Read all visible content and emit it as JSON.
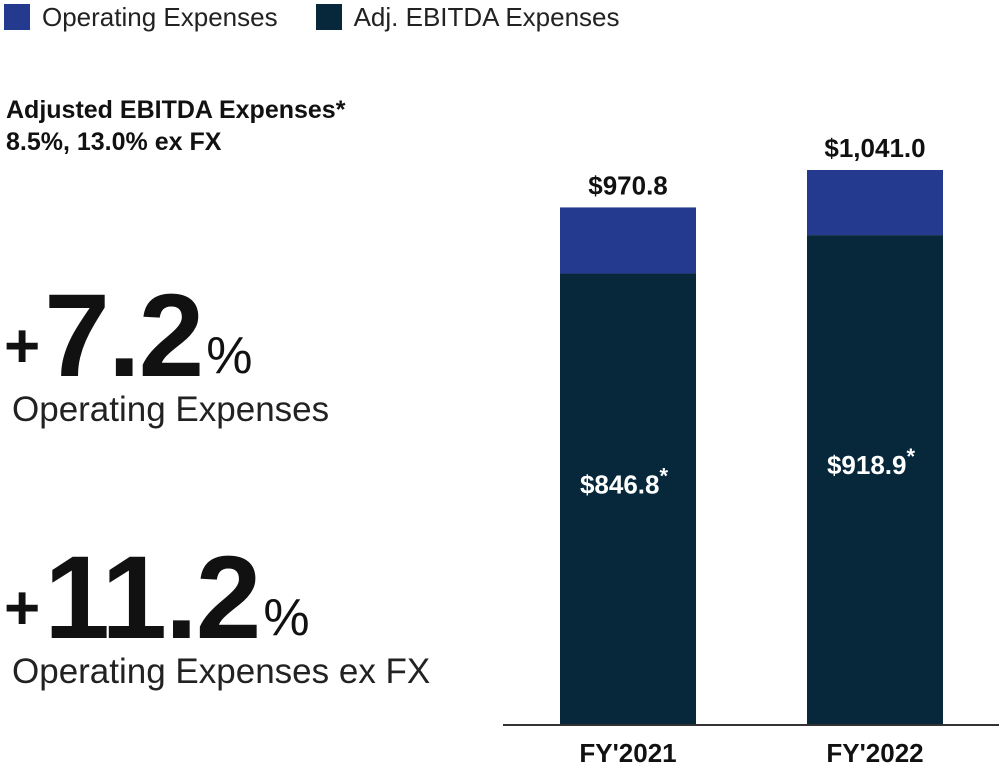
{
  "colors": {
    "operating": "#243a8f",
    "adj_ebitda": "#07283a",
    "axis": "#333333",
    "text": "#111111"
  },
  "legend": [
    {
      "label": "Operating Expenses",
      "color": "#243a8f"
    },
    {
      "label": "Adj. EBITDA Expenses",
      "color": "#07283a"
    }
  ],
  "headline": {
    "line1": "Adjusted EBITDA Expenses*",
    "line2": "8.5%, 13.0% ex FX"
  },
  "kpis": [
    {
      "sign": "+",
      "value": "7.2",
      "unit": "%",
      "label": "Operating Expenses"
    },
    {
      "sign": "+",
      "value": "11.2",
      "unit": "%",
      "label": "Operating Expenses ex FX"
    }
  ],
  "chart_data": {
    "type": "bar",
    "stacked": true,
    "categories": [
      "FY'2021",
      "FY'2022"
    ],
    "series": [
      {
        "name": "Adj. EBITDA Expenses",
        "values": [
          846.8,
          918.9
        ],
        "labels": [
          "$846.8",
          "$918.9"
        ],
        "marker": "*"
      },
      {
        "name": "Operating Expenses",
        "values": [
          124.0,
          122.1
        ]
      }
    ],
    "totals": [
      970.8,
      1041.0
    ],
    "total_labels": [
      "$970.8",
      "$1,041.0"
    ],
    "title": "",
    "xlabel": "",
    "ylabel": "",
    "ylim": [
      0,
      1041.0
    ]
  }
}
